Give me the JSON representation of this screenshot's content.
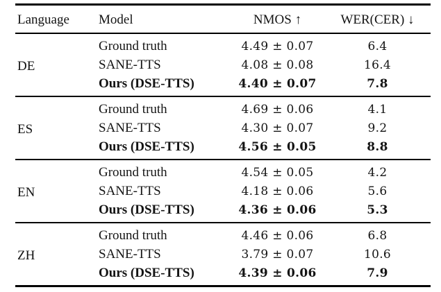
{
  "page": {
    "background_color": "#ffffff",
    "text_color": "#141414",
    "rule_color": "#000000"
  },
  "table": {
    "headers": {
      "language": "Language",
      "model": "Model",
      "nmos": "NMOS ↑",
      "wer": "WER(CER) ↓"
    },
    "blocks": [
      {
        "language": "DE",
        "rows": [
          {
            "model": "Ground truth",
            "nmos": "4.49 ± 0.07",
            "wer": "6.4",
            "emphasis": "normal"
          },
          {
            "model": "SANE-TTS",
            "nmos": "4.08 ± 0.08",
            "wer": "16.4",
            "emphasis": "normal"
          },
          {
            "model": "Ours (DSE-TTS)",
            "nmos": "4.40 ± 0.07",
            "wer": "7.8",
            "emphasis": "bold"
          }
        ]
      },
      {
        "language": "ES",
        "rows": [
          {
            "model": "Ground truth",
            "nmos": "4.69 ± 0.06",
            "wer": "4.1",
            "emphasis": "normal"
          },
          {
            "model": "SANE-TTS",
            "nmos": "4.30 ± 0.07",
            "wer": "9.2",
            "emphasis": "normal"
          },
          {
            "model": "Ours (DSE-TTS)",
            "nmos": "4.56 ± 0.05",
            "wer": "8.8",
            "emphasis": "bold"
          }
        ]
      },
      {
        "language": "EN",
        "rows": [
          {
            "model": "Ground truth",
            "nmos": "4.54 ± 0.05",
            "wer": "4.2",
            "emphasis": "normal"
          },
          {
            "model": "SANE-TTS",
            "nmos": "4.18 ± 0.06",
            "wer": "5.6",
            "emphasis": "normal"
          },
          {
            "model": "Ours (DSE-TTS)",
            "nmos": "4.36 ± 0.06",
            "wer": "5.3",
            "emphasis": "bold"
          }
        ]
      },
      {
        "language": "ZH",
        "rows": [
          {
            "model": "Ground truth",
            "nmos": "4.46 ± 0.06",
            "wer": "6.8",
            "emphasis": "normal"
          },
          {
            "model": "SANE-TTS",
            "nmos": "3.79 ± 0.07",
            "wer": "10.6",
            "emphasis": "normal"
          },
          {
            "model": "Ours (DSE-TTS)",
            "nmos": "4.39 ± 0.06",
            "wer": "7.9",
            "emphasis": "bold"
          }
        ]
      }
    ]
  }
}
